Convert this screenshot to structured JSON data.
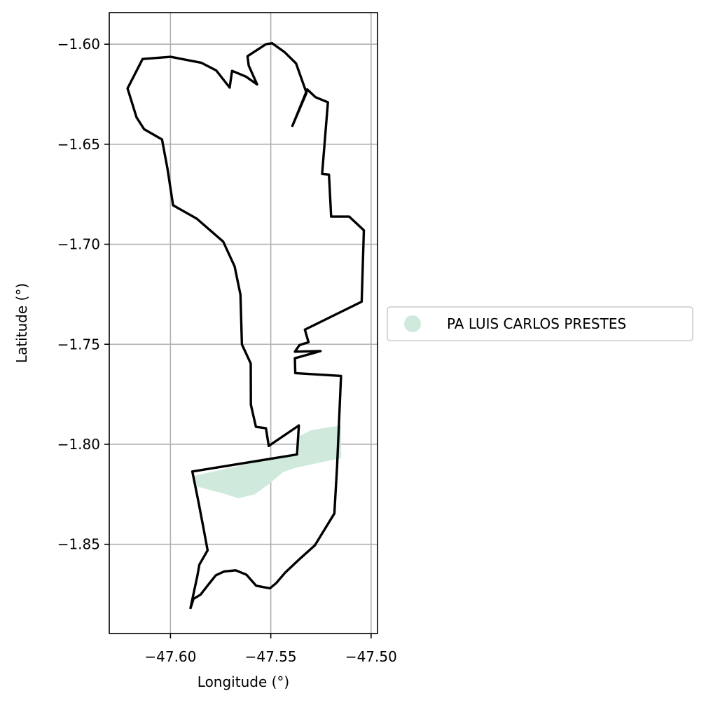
{
  "chart_data": {
    "type": "map",
    "title": "",
    "xlabel": "Longitude (°)",
    "ylabel": "Latitude (°)",
    "xlim": [
      -47.6305,
      -47.4968
    ],
    "ylim": [
      -1.8946,
      -1.5842
    ],
    "x_ticks": [
      -47.6,
      -47.55,
      -47.5
    ],
    "x_tick_labels": [
      "−47.60",
      "−47.55",
      "−47.50"
    ],
    "y_ticks": [
      -1.6,
      -1.65,
      -1.7,
      -1.75,
      -1.8,
      -1.85
    ],
    "y_tick_labels": [
      "−1.60",
      "−1.65",
      "−1.70",
      "−1.75",
      "−1.80",
      "−1.85"
    ],
    "grid": true,
    "legend": {
      "placement": "right, outside plot",
      "entries": [
        {
          "label": "PA LUIS CARLOS PRESTES",
          "color": "#cfeadc"
        }
      ]
    },
    "layers": [
      {
        "name": "boundary",
        "kind": "outline",
        "color": "#000000",
        "coords": [
          [
            -47.5901,
            -1.8823
          ],
          [
            -47.5885,
            -1.8773
          ],
          [
            -47.585,
            -1.8752
          ],
          [
            -47.5812,
            -1.8703
          ],
          [
            -47.5774,
            -1.8655
          ],
          [
            -47.5733,
            -1.8636
          ],
          [
            -47.5675,
            -1.863
          ],
          [
            -47.5621,
            -1.8652
          ],
          [
            -47.5573,
            -1.8707
          ],
          [
            -47.5504,
            -1.872
          ],
          [
            -47.5473,
            -1.8694
          ],
          [
            -47.5427,
            -1.864
          ],
          [
            -47.5362,
            -1.8579
          ],
          [
            -47.528,
            -1.8505
          ],
          [
            -47.5183,
            -1.8346
          ],
          [
            -47.5169,
            -1.8102
          ],
          [
            -47.515,
            -1.7658
          ],
          [
            -47.5378,
            -1.7644
          ],
          [
            -47.538,
            -1.757
          ],
          [
            -47.5252,
            -1.7534
          ],
          [
            -47.538,
            -1.7537
          ],
          [
            -47.5357,
            -1.7504
          ],
          [
            -47.5312,
            -1.749
          ],
          [
            -47.533,
            -1.7427
          ],
          [
            -47.5047,
            -1.7287
          ],
          [
            -47.5036,
            -1.693
          ],
          [
            -47.5109,
            -1.6862
          ],
          [
            -47.5199,
            -1.6862
          ],
          [
            -47.521,
            -1.6652
          ],
          [
            -47.5244,
            -1.6649
          ],
          [
            -47.5215,
            -1.629
          ],
          [
            -47.5277,
            -1.6265
          ],
          [
            -47.5318,
            -1.6226
          ],
          [
            -47.5392,
            -1.6408
          ],
          [
            -47.5322,
            -1.6243
          ],
          [
            -47.5374,
            -1.6096
          ],
          [
            -47.5432,
            -1.6039
          ],
          [
            -47.5493,
            -1.5995
          ],
          [
            -47.5524,
            -1.6
          ],
          [
            -47.5616,
            -1.606
          ],
          [
            -47.561,
            -1.6107
          ],
          [
            -47.5568,
            -1.6201
          ],
          [
            -47.5624,
            -1.6162
          ],
          [
            -47.5693,
            -1.6133
          ],
          [
            -47.5705,
            -1.6217
          ],
          [
            -47.5772,
            -1.6131
          ],
          [
            -47.5846,
            -1.6093
          ],
          [
            -47.5999,
            -1.6063
          ],
          [
            -47.6139,
            -1.6074
          ],
          [
            -47.6214,
            -1.6221
          ],
          [
            -47.6169,
            -1.6366
          ],
          [
            -47.6131,
            -1.6425
          ],
          [
            -47.6042,
            -1.6476
          ],
          [
            -47.6015,
            -1.6622
          ],
          [
            -47.5987,
            -1.6805
          ],
          [
            -47.5869,
            -1.6872
          ],
          [
            -47.5737,
            -1.6987
          ],
          [
            -47.568,
            -1.7111
          ],
          [
            -47.5651,
            -1.7252
          ],
          [
            -47.5644,
            -1.7501
          ],
          [
            -47.56,
            -1.7596
          ],
          [
            -47.5599,
            -1.7802
          ],
          [
            -47.5574,
            -1.7913
          ],
          [
            -47.5524,
            -1.792
          ],
          [
            -47.551,
            -1.8008
          ],
          [
            -47.536,
            -1.7906
          ],
          [
            -47.5369,
            -1.8051
          ],
          [
            -47.5891,
            -1.8136
          ],
          [
            -47.586,
            -1.829
          ],
          [
            -47.5836,
            -1.8417
          ],
          [
            -47.5815,
            -1.853
          ],
          [
            -47.5856,
            -1.8602
          ],
          [
            -47.5865,
            -1.8654
          ],
          [
            -47.5901,
            -1.8823
          ]
        ]
      },
      {
        "name": "PA LUIS CARLOS PRESTES",
        "kind": "filled_area",
        "color": "#cfeadc",
        "coords": [
          [
            -47.5891,
            -1.816
          ],
          [
            -47.558,
            -1.809
          ],
          [
            -47.536,
            -1.805
          ],
          [
            -47.536,
            -1.796
          ],
          [
            -47.53,
            -1.793
          ],
          [
            -47.515,
            -1.7905
          ],
          [
            -47.5149,
            -1.807
          ],
          [
            -47.525,
            -1.809
          ],
          [
            -47.538,
            -1.8118
          ],
          [
            -47.544,
            -1.814
          ],
          [
            -47.551,
            -1.82
          ],
          [
            -47.558,
            -1.825
          ],
          [
            -47.566,
            -1.827
          ],
          [
            -47.574,
            -1.8245
          ],
          [
            -47.58,
            -1.823
          ],
          [
            -47.587,
            -1.821
          ],
          [
            -47.5891,
            -1.816
          ]
        ]
      }
    ]
  }
}
